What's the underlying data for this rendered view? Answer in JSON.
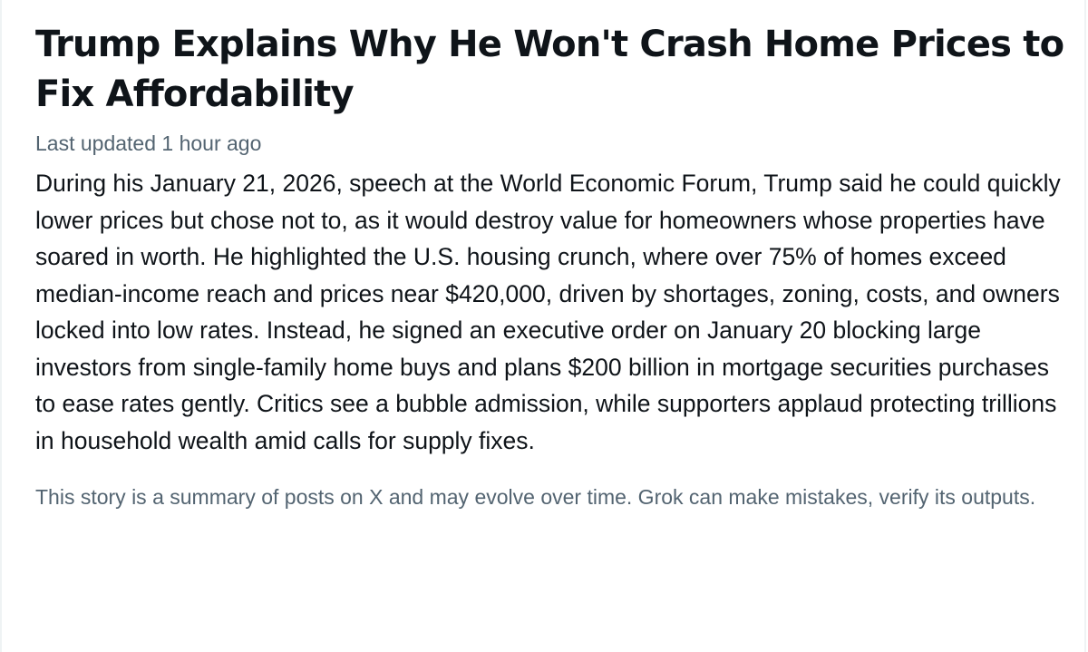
{
  "story": {
    "headline": "Trump Explains Why He Won't Crash Home Prices to Fix Affordability",
    "last_updated": "Last updated 1 hour ago",
    "summary": "During his January 21, 2026, speech at the World Economic Forum, Trump said he could quickly lower prices but chose not to, as it would destroy value for homeowners whose properties have soared in worth. He highlighted the U.S. housing crunch, where over 75% of homes exceed median-income reach and prices near $420,000, driven by shortages, zoning, costs, and owners locked into low rates. Instead, he signed an executive order on January 20 blocking large investors from single-family home buys and plans $200 billion in mortgage securities purchases to ease rates gently. Critics see a bubble admission, while supporters applaud protecting trillions in household wealth amid calls for supply fixes.",
    "disclaimer": "This story is a summary of posts on X and may evolve over time. Grok can make mistakes, verify its outputs."
  },
  "colors": {
    "primary_text": "#0f1419",
    "secondary_text": "#536471",
    "background": "#ffffff",
    "border": "#eff3f4"
  }
}
